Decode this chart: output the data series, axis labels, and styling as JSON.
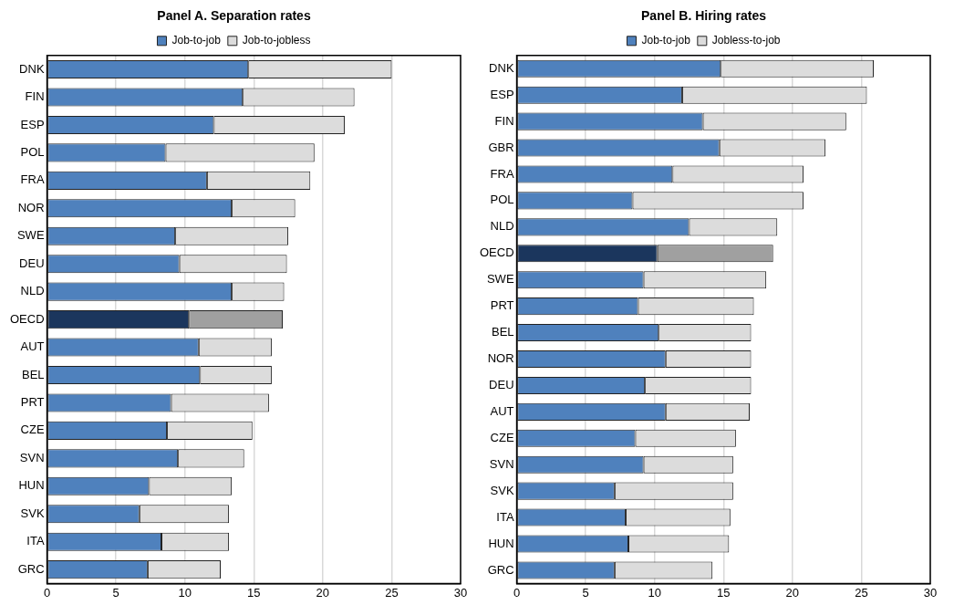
{
  "chart_data": [
    {
      "type": "bar",
      "title": "Panel A. Separation rates",
      "orientation": "horizontal",
      "stacked": true,
      "grid": "x",
      "legend": "top",
      "categories": [
        "DNK",
        "FIN",
        "ESP",
        "POL",
        "FRA",
        "NOR",
        "SWE",
        "DEU",
        "NLD",
        "OECD",
        "AUT",
        "BEL",
        "PRT",
        "CZE",
        "SVN",
        "HUN",
        "SVK",
        "ITA",
        "GRC"
      ],
      "xlim": [
        0,
        30
      ],
      "xticks": [
        0,
        5,
        10,
        15,
        20,
        25,
        30
      ],
      "series": [
        {
          "name": "Job-to-job",
          "color": "#4f81bd",
          "colors": [
            "#4f81bd",
            "#4f81bd",
            "#4f81bd",
            "#4f81bd",
            "#4f81bd",
            "#4f81bd",
            "#4f81bd",
            "#4f81bd",
            "#4f81bd",
            "#1b365d",
            "#4f81bd",
            "#4f81bd",
            "#4f81bd",
            "#4f81bd",
            "#4f81bd",
            "#4f81bd",
            "#4f81bd",
            "#4f81bd",
            "#4f81bd"
          ],
          "values": [
            14.6,
            14.2,
            12.1,
            8.6,
            11.6,
            13.4,
            9.3,
            9.6,
            13.4,
            10.3,
            11.0,
            11.1,
            9.0,
            8.7,
            9.5,
            7.4,
            6.7,
            8.3,
            7.3
          ]
        },
        {
          "name": "Job-to-jobless",
          "color": "#dcdcdc",
          "colors": [
            "#dcdcdc",
            "#dcdcdc",
            "#dcdcdc",
            "#dcdcdc",
            "#dcdcdc",
            "#dcdcdc",
            "#dcdcdc",
            "#dcdcdc",
            "#dcdcdc",
            "#a0a0a0",
            "#dcdcdc",
            "#dcdcdc",
            "#dcdcdc",
            "#dcdcdc",
            "#dcdcdc",
            "#dcdcdc",
            "#dcdcdc",
            "#dcdcdc",
            "#dcdcdc"
          ],
          "values": [
            10.4,
            8.1,
            9.5,
            10.8,
            7.5,
            4.6,
            8.2,
            7.8,
            3.8,
            6.8,
            5.3,
            5.2,
            7.1,
            6.2,
            4.8,
            6.0,
            6.5,
            4.9,
            5.3
          ]
        }
      ]
    },
    {
      "type": "bar",
      "title": "Panel B. Hiring rates",
      "orientation": "horizontal",
      "stacked": true,
      "grid": "x",
      "legend": "top",
      "categories": [
        "DNK",
        "ESP",
        "FIN",
        "GBR",
        "FRA",
        "POL",
        "NLD",
        "OECD",
        "SWE",
        "PRT",
        "BEL",
        "NOR",
        "DEU",
        "AUT",
        "CZE",
        "SVN",
        "SVK",
        "ITA",
        "HUN",
        "GRC"
      ],
      "xlim": [
        0,
        30
      ],
      "xticks": [
        0,
        5,
        10,
        15,
        20,
        25,
        30
      ],
      "series": [
        {
          "name": "Job-to-job",
          "color": "#4f81bd",
          "colors": [
            "#4f81bd",
            "#4f81bd",
            "#4f81bd",
            "#4f81bd",
            "#4f81bd",
            "#4f81bd",
            "#4f81bd",
            "#1b365d",
            "#4f81bd",
            "#4f81bd",
            "#4f81bd",
            "#4f81bd",
            "#4f81bd",
            "#4f81bd",
            "#4f81bd",
            "#4f81bd",
            "#4f81bd",
            "#4f81bd",
            "#4f81bd",
            "#4f81bd"
          ],
          "values": [
            14.8,
            12.0,
            13.5,
            14.7,
            11.3,
            8.4,
            12.5,
            10.2,
            9.2,
            8.8,
            10.3,
            10.8,
            9.3,
            10.8,
            8.6,
            9.2,
            7.1,
            7.9,
            8.1,
            7.1
          ]
        },
        {
          "name": "Jobless-to-job",
          "color": "#dcdcdc",
          "colors": [
            "#dcdcdc",
            "#dcdcdc",
            "#dcdcdc",
            "#dcdcdc",
            "#dcdcdc",
            "#dcdcdc",
            "#dcdcdc",
            "#a0a0a0",
            "#dcdcdc",
            "#dcdcdc",
            "#dcdcdc",
            "#dcdcdc",
            "#dcdcdc",
            "#dcdcdc",
            "#dcdcdc",
            "#dcdcdc",
            "#dcdcdc",
            "#dcdcdc",
            "#dcdcdc",
            "#dcdcdc"
          ],
          "values": [
            11.1,
            13.4,
            10.4,
            7.7,
            9.5,
            12.4,
            6.4,
            8.4,
            8.9,
            8.4,
            6.7,
            6.2,
            7.7,
            6.1,
            7.3,
            6.5,
            8.6,
            7.6,
            7.3,
            7.1
          ]
        }
      ]
    }
  ]
}
